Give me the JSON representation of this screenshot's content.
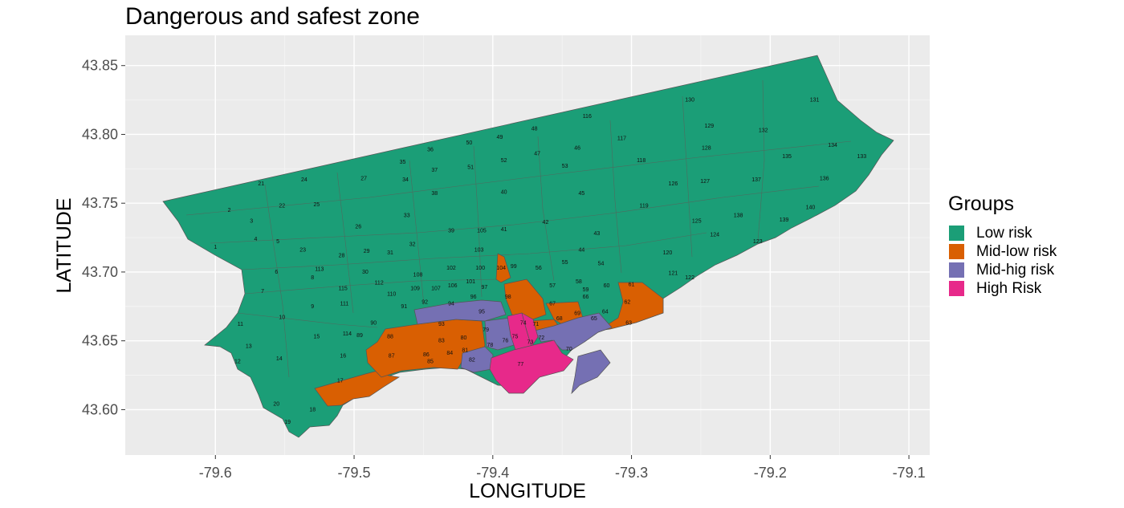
{
  "title": "Dangerous and safest zone",
  "colors": {
    "low": "#1b9e77",
    "midlow": "#d95f02",
    "midhigh": "#7570b3",
    "high": "#e7298a",
    "panel_bg": "#ebebeb",
    "border": "#555555"
  },
  "chart_data": {
    "type": "choropleth-map",
    "xlabel": "LONGITUDE",
    "ylabel": "LATITUDE",
    "xlim": [
      -79.665,
      -79.085
    ],
    "ylim": [
      43.567,
      43.872
    ],
    "x_ticks": [
      -79.6,
      -79.5,
      -79.4,
      -79.3,
      -79.2,
      -79.1
    ],
    "x_tick_labels": [
      "-79.6",
      "-79.5",
      "-79.4",
      "-79.3",
      "-79.2",
      "-79.1"
    ],
    "y_ticks": [
      43.6,
      43.65,
      43.7,
      43.75,
      43.8,
      43.85
    ],
    "y_tick_labels": [
      "43.60",
      "43.65",
      "43.70",
      "43.75",
      "43.80",
      "43.85"
    ],
    "grid": true,
    "legend": {
      "title": "Groups",
      "position": "right",
      "entries": [
        {
          "label": "Low risk",
          "color": "#1b9e77"
        },
        {
          "label": "Mid-low risk",
          "color": "#d95f02"
        },
        {
          "label": "Mid-hig risk",
          "color": "#7570b3"
        },
        {
          "label": "High Risk",
          "color": "#e7298a"
        }
      ]
    },
    "groups": {
      "Mid-low risk": [
        "17",
        "62",
        "63",
        "66",
        "68",
        "71",
        "72",
        "74",
        "80",
        "81",
        "83",
        "84",
        "85",
        "86",
        "87",
        "98",
        "104"
      ],
      "Mid-hig risk": [
        "70",
        "73",
        "78",
        "79",
        "82",
        "93",
        "95"
      ],
      "High Risk": [
        "75",
        "76",
        "77"
      ]
    },
    "neighbourhood_labels": [
      {
        "id": "1",
        "lon": -79.6,
        "lat": 43.718
      },
      {
        "id": "2",
        "lon": -79.59,
        "lat": 43.745
      },
      {
        "id": "3",
        "lon": -79.574,
        "lat": 43.737
      },
      {
        "id": "4",
        "lon": -79.571,
        "lat": 43.724
      },
      {
        "id": "5",
        "lon": -79.555,
        "lat": 43.722
      },
      {
        "id": "6",
        "lon": -79.556,
        "lat": 43.7
      },
      {
        "id": "7",
        "lon": -79.566,
        "lat": 43.686
      },
      {
        "id": "8",
        "lon": -79.53,
        "lat": 43.696
      },
      {
        "id": "9",
        "lon": -79.53,
        "lat": 43.675
      },
      {
        "id": "10",
        "lon": -79.552,
        "lat": 43.667
      },
      {
        "id": "11",
        "lon": -79.582,
        "lat": 43.662
      },
      {
        "id": "12",
        "lon": -79.584,
        "lat": 43.635
      },
      {
        "id": "13",
        "lon": -79.576,
        "lat": 43.646
      },
      {
        "id": "14",
        "lon": -79.554,
        "lat": 43.637
      },
      {
        "id": "15",
        "lon": -79.527,
        "lat": 43.653
      },
      {
        "id": "16",
        "lon": -79.508,
        "lat": 43.639
      },
      {
        "id": "17",
        "lon": -79.51,
        "lat": 43.621
      },
      {
        "id": "18",
        "lon": -79.53,
        "lat": 43.6
      },
      {
        "id": "19",
        "lon": -79.548,
        "lat": 43.591
      },
      {
        "id": "20",
        "lon": -79.556,
        "lat": 43.604
      },
      {
        "id": "21",
        "lon": -79.567,
        "lat": 43.764
      },
      {
        "id": "22",
        "lon": -79.552,
        "lat": 43.748
      },
      {
        "id": "23",
        "lon": -79.537,
        "lat": 43.716
      },
      {
        "id": "24",
        "lon": -79.536,
        "lat": 43.767
      },
      {
        "id": "25",
        "lon": -79.527,
        "lat": 43.749
      },
      {
        "id": "26",
        "lon": -79.497,
        "lat": 43.733
      },
      {
        "id": "27",
        "lon": -79.493,
        "lat": 43.768
      },
      {
        "id": "28",
        "lon": -79.509,
        "lat": 43.712
      },
      {
        "id": "29",
        "lon": -79.491,
        "lat": 43.715
      },
      {
        "id": "30",
        "lon": -79.492,
        "lat": 43.7
      },
      {
        "id": "31",
        "lon": -79.474,
        "lat": 43.714
      },
      {
        "id": "32",
        "lon": -79.458,
        "lat": 43.72
      },
      {
        "id": "33",
        "lon": -79.462,
        "lat": 43.741
      },
      {
        "id": "34",
        "lon": -79.463,
        "lat": 43.767
      },
      {
        "id": "35",
        "lon": -79.465,
        "lat": 43.78
      },
      {
        "id": "36",
        "lon": -79.445,
        "lat": 43.789
      },
      {
        "id": "37",
        "lon": -79.442,
        "lat": 43.774
      },
      {
        "id": "38",
        "lon": -79.442,
        "lat": 43.757
      },
      {
        "id": "39",
        "lon": -79.43,
        "lat": 43.73
      },
      {
        "id": "40",
        "lon": -79.392,
        "lat": 43.758
      },
      {
        "id": "41",
        "lon": -79.392,
        "lat": 43.731
      },
      {
        "id": "42",
        "lon": -79.362,
        "lat": 43.736
      },
      {
        "id": "43",
        "lon": -79.325,
        "lat": 43.728
      },
      {
        "id": "44",
        "lon": -79.336,
        "lat": 43.716
      },
      {
        "id": "45",
        "lon": -79.336,
        "lat": 43.757
      },
      {
        "id": "46",
        "lon": -79.339,
        "lat": 43.79
      },
      {
        "id": "47",
        "lon": -79.368,
        "lat": 43.786
      },
      {
        "id": "48",
        "lon": -79.37,
        "lat": 43.804
      },
      {
        "id": "49",
        "lon": -79.395,
        "lat": 43.798
      },
      {
        "id": "50",
        "lon": -79.417,
        "lat": 43.794
      },
      {
        "id": "51",
        "lon": -79.416,
        "lat": 43.776
      },
      {
        "id": "52",
        "lon": -79.392,
        "lat": 43.781
      },
      {
        "id": "53",
        "lon": -79.348,
        "lat": 43.777
      },
      {
        "id": "54",
        "lon": -79.322,
        "lat": 43.706
      },
      {
        "id": "55",
        "lon": -79.348,
        "lat": 43.707
      },
      {
        "id": "56",
        "lon": -79.367,
        "lat": 43.703
      },
      {
        "id": "57",
        "lon": -79.357,
        "lat": 43.69
      },
      {
        "id": "58",
        "lon": -79.338,
        "lat": 43.693
      },
      {
        "id": "59",
        "lon": -79.333,
        "lat": 43.687
      },
      {
        "id": "60",
        "lon": -79.318,
        "lat": 43.69
      },
      {
        "id": "61",
        "lon": -79.3,
        "lat": 43.691
      },
      {
        "id": "62",
        "lon": -79.303,
        "lat": 43.678
      },
      {
        "id": "63",
        "lon": -79.302,
        "lat": 43.663
      },
      {
        "id": "64",
        "lon": -79.319,
        "lat": 43.671
      },
      {
        "id": "65",
        "lon": -79.327,
        "lat": 43.666
      },
      {
        "id": "66",
        "lon": -79.333,
        "lat": 43.682
      },
      {
        "id": "67",
        "lon": -79.357,
        "lat": 43.677
      },
      {
        "id": "68",
        "lon": -79.352,
        "lat": 43.666
      },
      {
        "id": "69",
        "lon": -79.339,
        "lat": 43.67
      },
      {
        "id": "70",
        "lon": -79.345,
        "lat": 43.644
      },
      {
        "id": "71",
        "lon": -79.369,
        "lat": 43.662
      },
      {
        "id": "72",
        "lon": -79.365,
        "lat": 43.652
      },
      {
        "id": "73",
        "lon": -79.373,
        "lat": 43.649
      },
      {
        "id": "74",
        "lon": -79.378,
        "lat": 43.663
      },
      {
        "id": "75",
        "lon": -79.384,
        "lat": 43.653
      },
      {
        "id": "76",
        "lon": -79.391,
        "lat": 43.65
      },
      {
        "id": "77",
        "lon": -79.38,
        "lat": 43.633
      },
      {
        "id": "78",
        "lon": -79.402,
        "lat": 43.647
      },
      {
        "id": "79",
        "lon": -79.405,
        "lat": 43.658
      },
      {
        "id": "80",
        "lon": -79.421,
        "lat": 43.652
      },
      {
        "id": "81",
        "lon": -79.42,
        "lat": 43.643
      },
      {
        "id": "82",
        "lon": -79.415,
        "lat": 43.636
      },
      {
        "id": "83",
        "lon": -79.437,
        "lat": 43.65
      },
      {
        "id": "84",
        "lon": -79.431,
        "lat": 43.641
      },
      {
        "id": "85",
        "lon": -79.445,
        "lat": 43.635
      },
      {
        "id": "86",
        "lon": -79.448,
        "lat": 43.64
      },
      {
        "id": "87",
        "lon": -79.473,
        "lat": 43.639
      },
      {
        "id": "88",
        "lon": -79.474,
        "lat": 43.653
      },
      {
        "id": "89",
        "lon": -79.496,
        "lat": 43.654
      },
      {
        "id": "90",
        "lon": -79.486,
        "lat": 43.663
      },
      {
        "id": "91",
        "lon": -79.464,
        "lat": 43.675
      },
      {
        "id": "92",
        "lon": -79.449,
        "lat": 43.678
      },
      {
        "id": "93",
        "lon": -79.437,
        "lat": 43.662
      },
      {
        "id": "94",
        "lon": -79.43,
        "lat": 43.677
      },
      {
        "id": "95",
        "lon": -79.408,
        "lat": 43.671
      },
      {
        "id": "96",
        "lon": -79.414,
        "lat": 43.682
      },
      {
        "id": "97",
        "lon": -79.406,
        "lat": 43.689
      },
      {
        "id": "98",
        "lon": -79.389,
        "lat": 43.682
      },
      {
        "id": "99",
        "lon": -79.385,
        "lat": 43.704
      },
      {
        "id": "100",
        "lon": -79.409,
        "lat": 43.703
      },
      {
        "id": "101",
        "lon": -79.416,
        "lat": 43.693
      },
      {
        "id": "102",
        "lon": -79.43,
        "lat": 43.703
      },
      {
        "id": "103",
        "lon": -79.41,
        "lat": 43.716
      },
      {
        "id": "104",
        "lon": -79.394,
        "lat": 43.703
      },
      {
        "id": "105",
        "lon": -79.408,
        "lat": 43.73
      },
      {
        "id": "106",
        "lon": -79.429,
        "lat": 43.69
      },
      {
        "id": "107",
        "lon": -79.441,
        "lat": 43.688
      },
      {
        "id": "108",
        "lon": -79.454,
        "lat": 43.698
      },
      {
        "id": "109",
        "lon": -79.456,
        "lat": 43.688
      },
      {
        "id": "110",
        "lon": -79.473,
        "lat": 43.684
      },
      {
        "id": "111",
        "lon": -79.507,
        "lat": 43.677
      },
      {
        "id": "112",
        "lon": -79.482,
        "lat": 43.692
      },
      {
        "id": "113",
        "lon": -79.525,
        "lat": 43.702
      },
      {
        "id": "114",
        "lon": -79.505,
        "lat": 43.655
      },
      {
        "id": "115",
        "lon": -79.508,
        "lat": 43.688
      },
      {
        "id": "116",
        "lon": -79.332,
        "lat": 43.813
      },
      {
        "id": "117",
        "lon": -79.307,
        "lat": 43.797
      },
      {
        "id": "118",
        "lon": -79.293,
        "lat": 43.781
      },
      {
        "id": "119",
        "lon": -79.291,
        "lat": 43.748
      },
      {
        "id": "120",
        "lon": -79.274,
        "lat": 43.714
      },
      {
        "id": "121",
        "lon": -79.27,
        "lat": 43.699
      },
      {
        "id": "122",
        "lon": -79.258,
        "lat": 43.696
      },
      {
        "id": "123",
        "lon": -79.209,
        "lat": 43.722
      },
      {
        "id": "124",
        "lon": -79.24,
        "lat": 43.727
      },
      {
        "id": "125",
        "lon": -79.253,
        "lat": 43.737
      },
      {
        "id": "126",
        "lon": -79.27,
        "lat": 43.764
      },
      {
        "id": "127",
        "lon": -79.247,
        "lat": 43.766
      },
      {
        "id": "128",
        "lon": -79.246,
        "lat": 43.79
      },
      {
        "id": "129",
        "lon": -79.244,
        "lat": 43.806
      },
      {
        "id": "130",
        "lon": -79.258,
        "lat": 43.825
      },
      {
        "id": "131",
        "lon": -79.168,
        "lat": 43.825
      },
      {
        "id": "132",
        "lon": -79.205,
        "lat": 43.803
      },
      {
        "id": "133",
        "lon": -79.134,
        "lat": 43.784
      },
      {
        "id": "134",
        "lon": -79.155,
        "lat": 43.792
      },
      {
        "id": "135",
        "lon": -79.188,
        "lat": 43.784
      },
      {
        "id": "136",
        "lon": -79.161,
        "lat": 43.768
      },
      {
        "id": "137",
        "lon": -79.21,
        "lat": 43.767
      },
      {
        "id": "138",
        "lon": -79.223,
        "lat": 43.741
      },
      {
        "id": "139",
        "lon": -79.19,
        "lat": 43.738
      },
      {
        "id": "140",
        "lon": -79.171,
        "lat": 43.747
      }
    ]
  }
}
